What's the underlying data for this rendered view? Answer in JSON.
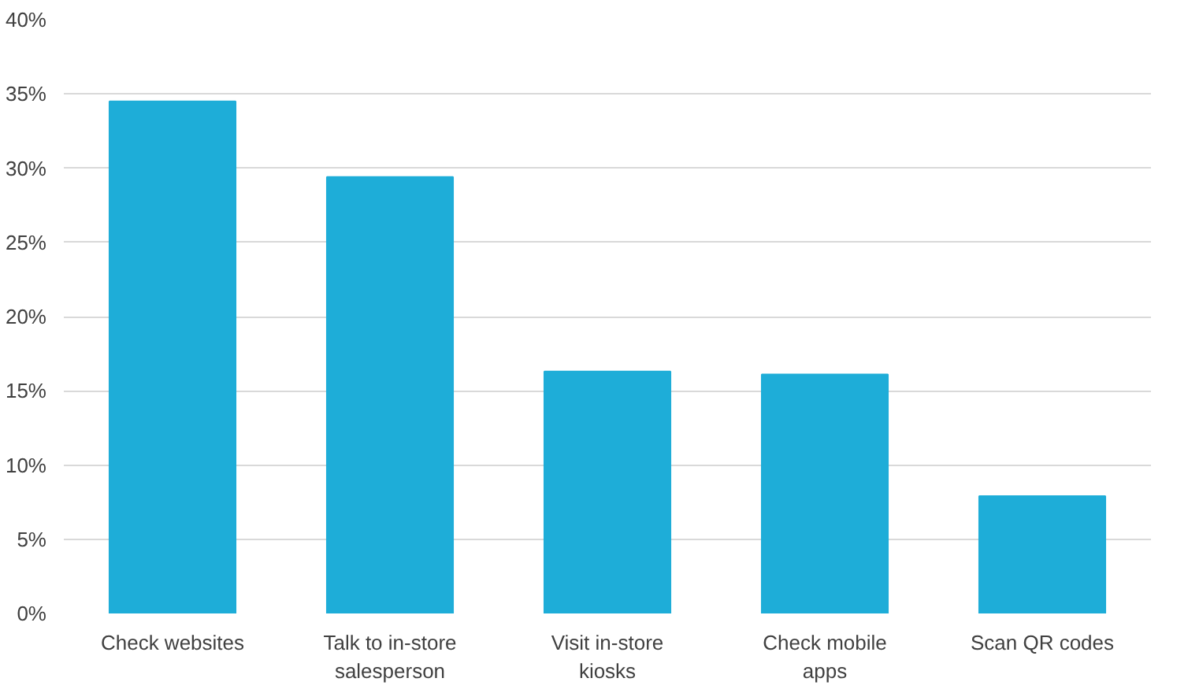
{
  "chart_data": {
    "type": "bar",
    "categories": [
      "Check websites",
      "Talk to in-store salesperson",
      "Visit in-store kiosks",
      "Check mobile apps",
      "Scan QR codes"
    ],
    "values": [
      34.5,
      29.4,
      16.3,
      16.1,
      7.9
    ],
    "color": "#1eadd8",
    "ylim": [
      0,
      40
    ],
    "yticks": [
      {
        "value": 0,
        "label": "0%"
      },
      {
        "value": 5,
        "label": "5%"
      },
      {
        "value": 10,
        "label": "10%"
      },
      {
        "value": 15,
        "label": "15%"
      },
      {
        "value": 20,
        "label": "20%"
      },
      {
        "value": 25,
        "label": "25%"
      },
      {
        "value": 30,
        "label": "30%"
      },
      {
        "value": 35,
        "label": "35%"
      },
      {
        "value": 40,
        "label": "40%"
      }
    ],
    "grid": "y"
  }
}
